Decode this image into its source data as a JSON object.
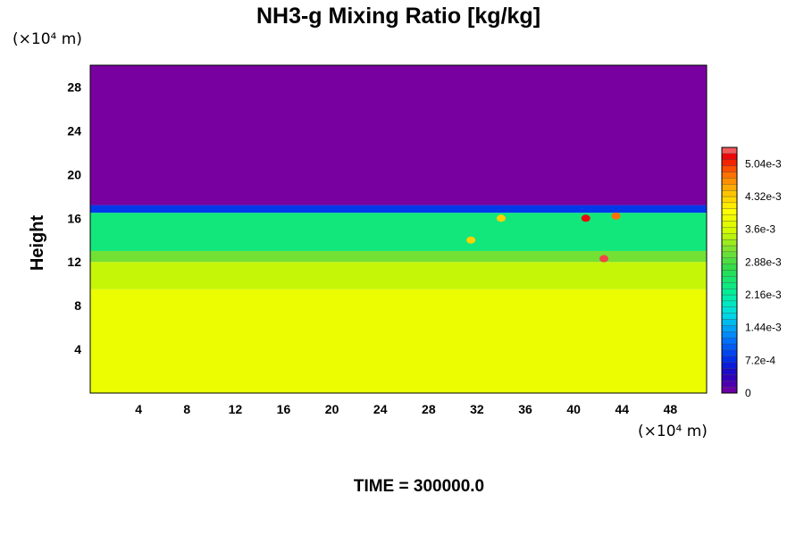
{
  "chart_data": {
    "type": "heatmap",
    "title": "NH3-g Mixing Ratio [kg/kg]",
    "xlabel": "",
    "ylabel": "Height",
    "x_unit": "(×10⁴ m)",
    "y_unit": "(×10⁴ m)",
    "xlim": [
      0,
      51
    ],
    "ylim": [
      0,
      30
    ],
    "x_ticks": [
      4,
      8,
      12,
      16,
      20,
      24,
      28,
      32,
      36,
      40,
      44,
      48
    ],
    "x_tick_labels": [
      "4",
      "8",
      "12",
      "16",
      "20",
      "24",
      "28",
      "32",
      "36",
      "40",
      "44",
      "48"
    ],
    "y_ticks": [
      4,
      8,
      12,
      16,
      20,
      24,
      28
    ],
    "y_tick_labels": [
      "4",
      "8",
      "12",
      "16",
      "20",
      "24",
      "28"
    ],
    "grid": false,
    "colorbar": {
      "min": 0,
      "max": 0.0054,
      "ticks": [
        0,
        0.00072,
        0.00144,
        0.00216,
        0.00288,
        0.0036,
        0.00432,
        0.00504
      ],
      "tick_labels": [
        "0",
        "7.2e-4",
        "1.44e-3",
        "2.16e-3",
        "2.88e-3",
        "3.6e-3",
        "4.32e-3",
        "5.04e-3"
      ],
      "placement": "right"
    },
    "profile": [
      {
        "height_min": 0,
        "height_max": 9.5,
        "value": 0.0038
      },
      {
        "height_min": 9.5,
        "height_max": 12.0,
        "value": 0.0035
      },
      {
        "height_min": 12.0,
        "height_max": 13.0,
        "value": 0.0031
      },
      {
        "height_min": 13.0,
        "height_max": 16.5,
        "value": 0.0024
      },
      {
        "height_min": 16.5,
        "height_max": 17.2,
        "value": 0.0008
      },
      {
        "height_min": 17.2,
        "height_max": 30,
        "value": 0
      }
    ],
    "features": [
      {
        "x": 41,
        "y": 16,
        "value": 0.0052
      },
      {
        "x": 43.5,
        "y": 16.2,
        "value": 0.0048
      },
      {
        "x": 42.5,
        "y": 12.3,
        "value": 0.0053
      },
      {
        "x": 34,
        "y": 16,
        "value": 0.0043
      },
      {
        "x": 31.5,
        "y": 14,
        "value": 0.0043
      }
    ]
  },
  "footer": {
    "time_label": "TIME = 300000.0"
  }
}
